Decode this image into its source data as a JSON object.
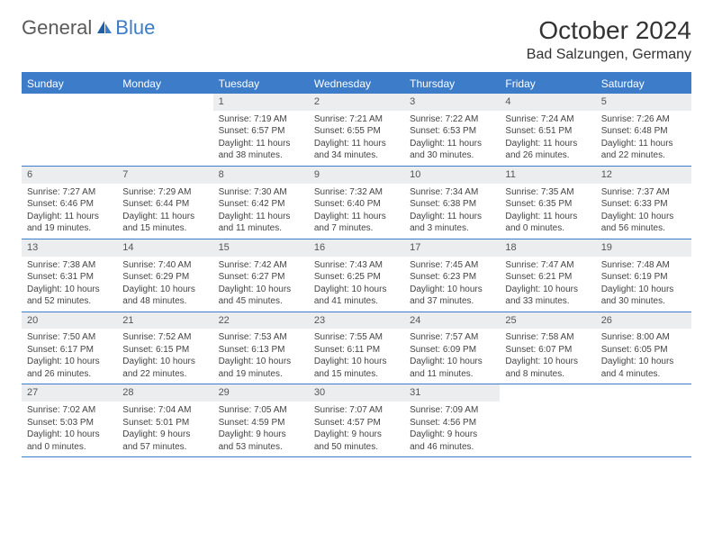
{
  "logo": {
    "text1": "General",
    "text2": "Blue"
  },
  "title": "October 2024",
  "location": "Bad Salzungen, Germany",
  "colors": {
    "accent": "#3d7cc9",
    "header_bg": "#3d7cc9",
    "daynum_bg": "#ecedee",
    "text": "#333333"
  },
  "day_headers": [
    "Sunday",
    "Monday",
    "Tuesday",
    "Wednesday",
    "Thursday",
    "Friday",
    "Saturday"
  ],
  "weeks": [
    [
      {
        "empty": true
      },
      {
        "empty": true
      },
      {
        "n": "1",
        "sr": "Sunrise: 7:19 AM",
        "ss": "Sunset: 6:57 PM",
        "dl": "Daylight: 11 hours and 38 minutes."
      },
      {
        "n": "2",
        "sr": "Sunrise: 7:21 AM",
        "ss": "Sunset: 6:55 PM",
        "dl": "Daylight: 11 hours and 34 minutes."
      },
      {
        "n": "3",
        "sr": "Sunrise: 7:22 AM",
        "ss": "Sunset: 6:53 PM",
        "dl": "Daylight: 11 hours and 30 minutes."
      },
      {
        "n": "4",
        "sr": "Sunrise: 7:24 AM",
        "ss": "Sunset: 6:51 PM",
        "dl": "Daylight: 11 hours and 26 minutes."
      },
      {
        "n": "5",
        "sr": "Sunrise: 7:26 AM",
        "ss": "Sunset: 6:48 PM",
        "dl": "Daylight: 11 hours and 22 minutes."
      }
    ],
    [
      {
        "n": "6",
        "sr": "Sunrise: 7:27 AM",
        "ss": "Sunset: 6:46 PM",
        "dl": "Daylight: 11 hours and 19 minutes."
      },
      {
        "n": "7",
        "sr": "Sunrise: 7:29 AM",
        "ss": "Sunset: 6:44 PM",
        "dl": "Daylight: 11 hours and 15 minutes."
      },
      {
        "n": "8",
        "sr": "Sunrise: 7:30 AM",
        "ss": "Sunset: 6:42 PM",
        "dl": "Daylight: 11 hours and 11 minutes."
      },
      {
        "n": "9",
        "sr": "Sunrise: 7:32 AM",
        "ss": "Sunset: 6:40 PM",
        "dl": "Daylight: 11 hours and 7 minutes."
      },
      {
        "n": "10",
        "sr": "Sunrise: 7:34 AM",
        "ss": "Sunset: 6:38 PM",
        "dl": "Daylight: 11 hours and 3 minutes."
      },
      {
        "n": "11",
        "sr": "Sunrise: 7:35 AM",
        "ss": "Sunset: 6:35 PM",
        "dl": "Daylight: 11 hours and 0 minutes."
      },
      {
        "n": "12",
        "sr": "Sunrise: 7:37 AM",
        "ss": "Sunset: 6:33 PM",
        "dl": "Daylight: 10 hours and 56 minutes."
      }
    ],
    [
      {
        "n": "13",
        "sr": "Sunrise: 7:38 AM",
        "ss": "Sunset: 6:31 PM",
        "dl": "Daylight: 10 hours and 52 minutes."
      },
      {
        "n": "14",
        "sr": "Sunrise: 7:40 AM",
        "ss": "Sunset: 6:29 PM",
        "dl": "Daylight: 10 hours and 48 minutes."
      },
      {
        "n": "15",
        "sr": "Sunrise: 7:42 AM",
        "ss": "Sunset: 6:27 PM",
        "dl": "Daylight: 10 hours and 45 minutes."
      },
      {
        "n": "16",
        "sr": "Sunrise: 7:43 AM",
        "ss": "Sunset: 6:25 PM",
        "dl": "Daylight: 10 hours and 41 minutes."
      },
      {
        "n": "17",
        "sr": "Sunrise: 7:45 AM",
        "ss": "Sunset: 6:23 PM",
        "dl": "Daylight: 10 hours and 37 minutes."
      },
      {
        "n": "18",
        "sr": "Sunrise: 7:47 AM",
        "ss": "Sunset: 6:21 PM",
        "dl": "Daylight: 10 hours and 33 minutes."
      },
      {
        "n": "19",
        "sr": "Sunrise: 7:48 AM",
        "ss": "Sunset: 6:19 PM",
        "dl": "Daylight: 10 hours and 30 minutes."
      }
    ],
    [
      {
        "n": "20",
        "sr": "Sunrise: 7:50 AM",
        "ss": "Sunset: 6:17 PM",
        "dl": "Daylight: 10 hours and 26 minutes."
      },
      {
        "n": "21",
        "sr": "Sunrise: 7:52 AM",
        "ss": "Sunset: 6:15 PM",
        "dl": "Daylight: 10 hours and 22 minutes."
      },
      {
        "n": "22",
        "sr": "Sunrise: 7:53 AM",
        "ss": "Sunset: 6:13 PM",
        "dl": "Daylight: 10 hours and 19 minutes."
      },
      {
        "n": "23",
        "sr": "Sunrise: 7:55 AM",
        "ss": "Sunset: 6:11 PM",
        "dl": "Daylight: 10 hours and 15 minutes."
      },
      {
        "n": "24",
        "sr": "Sunrise: 7:57 AM",
        "ss": "Sunset: 6:09 PM",
        "dl": "Daylight: 10 hours and 11 minutes."
      },
      {
        "n": "25",
        "sr": "Sunrise: 7:58 AM",
        "ss": "Sunset: 6:07 PM",
        "dl": "Daylight: 10 hours and 8 minutes."
      },
      {
        "n": "26",
        "sr": "Sunrise: 8:00 AM",
        "ss": "Sunset: 6:05 PM",
        "dl": "Daylight: 10 hours and 4 minutes."
      }
    ],
    [
      {
        "n": "27",
        "sr": "Sunrise: 7:02 AM",
        "ss": "Sunset: 5:03 PM",
        "dl": "Daylight: 10 hours and 0 minutes."
      },
      {
        "n": "28",
        "sr": "Sunrise: 7:04 AM",
        "ss": "Sunset: 5:01 PM",
        "dl": "Daylight: 9 hours and 57 minutes."
      },
      {
        "n": "29",
        "sr": "Sunrise: 7:05 AM",
        "ss": "Sunset: 4:59 PM",
        "dl": "Daylight: 9 hours and 53 minutes."
      },
      {
        "n": "30",
        "sr": "Sunrise: 7:07 AM",
        "ss": "Sunset: 4:57 PM",
        "dl": "Daylight: 9 hours and 50 minutes."
      },
      {
        "n": "31",
        "sr": "Sunrise: 7:09 AM",
        "ss": "Sunset: 4:56 PM",
        "dl": "Daylight: 9 hours and 46 minutes."
      },
      {
        "empty": true
      },
      {
        "empty": true
      }
    ]
  ]
}
